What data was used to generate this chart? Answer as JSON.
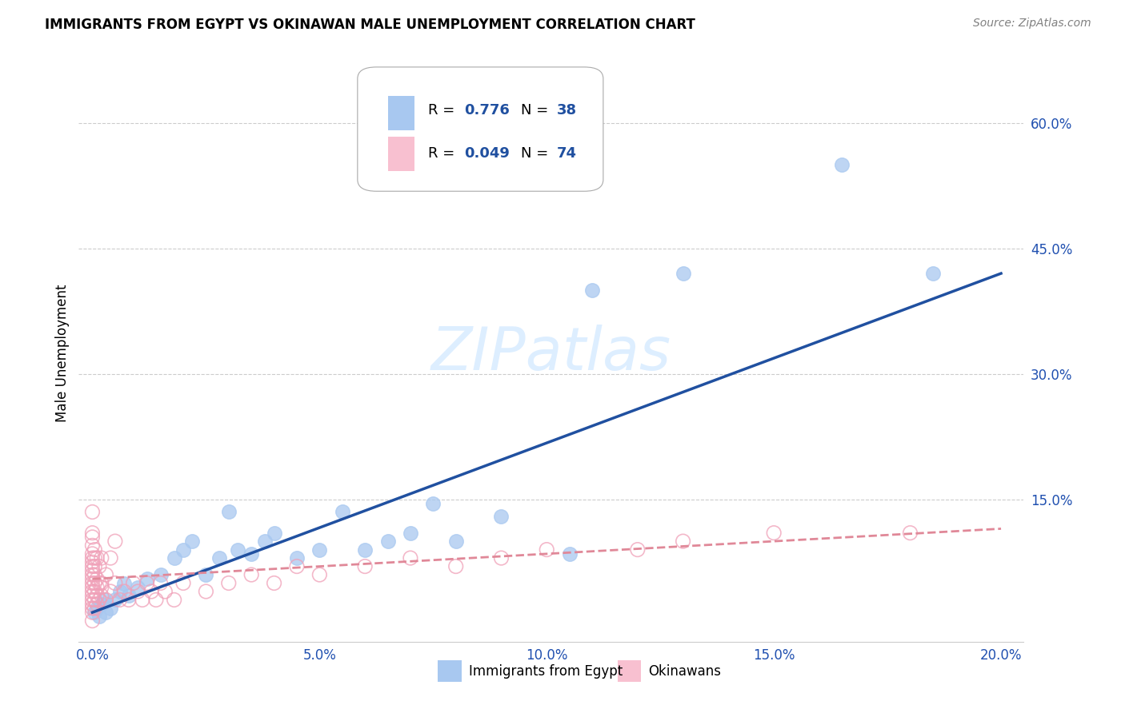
{
  "title": "IMMIGRANTS FROM EGYPT VS OKINAWAN MALE UNEMPLOYMENT CORRELATION CHART",
  "source": "Source: ZipAtlas.com",
  "ylabel": "Male Unemployment",
  "x_tick_labels": [
    "0.0%",
    "5.0%",
    "10.0%",
    "15.0%",
    "20.0%"
  ],
  "x_tick_vals": [
    0.0,
    5.0,
    10.0,
    15.0,
    20.0
  ],
  "y_tick_labels": [
    "15.0%",
    "30.0%",
    "45.0%",
    "60.0%"
  ],
  "y_tick_vals": [
    15.0,
    30.0,
    45.0,
    60.0
  ],
  "xlim": [
    -0.3,
    20.5
  ],
  "ylim": [
    -2.0,
    67.0
  ],
  "blue_face_color": "#A8C8F0",
  "blue_edge_color": "#A8C8F0",
  "pink_face_color": "none",
  "pink_edge_color": "#F0A0B8",
  "blue_line_color": "#2050A0",
  "pink_line_color": "#E08898",
  "legend1_label": "Immigrants from Egypt",
  "legend2_label": "Okinawans",
  "watermark": "ZIPatlas",
  "blue_scatter_x": [
    0.05,
    0.1,
    0.15,
    0.2,
    0.25,
    0.3,
    0.4,
    0.5,
    0.6,
    0.7,
    0.8,
    1.0,
    1.2,
    1.5,
    1.8,
    2.0,
    2.2,
    2.5,
    2.8,
    3.0,
    3.2,
    3.5,
    3.8,
    4.0,
    4.5,
    5.0,
    5.5,
    6.0,
    6.5,
    7.0,
    7.5,
    8.0,
    9.0,
    10.5,
    11.0,
    13.0,
    16.5,
    18.5
  ],
  "blue_scatter_y": [
    1.5,
    2.0,
    1.0,
    2.5,
    3.0,
    1.5,
    2.0,
    3.0,
    4.0,
    5.0,
    3.5,
    4.5,
    5.5,
    6.0,
    8.0,
    9.0,
    10.0,
    6.0,
    8.0,
    13.5,
    9.0,
    8.5,
    10.0,
    11.0,
    8.0,
    9.0,
    13.5,
    9.0,
    10.0,
    11.0,
    14.5,
    10.0,
    13.0,
    8.5,
    40.0,
    42.0,
    55.0,
    42.0
  ],
  "pink_scatter_x": [
    0.0,
    0.0,
    0.0,
    0.0,
    0.0,
    0.0,
    0.0,
    0.0,
    0.0,
    0.0,
    0.0,
    0.0,
    0.0,
    0.0,
    0.0,
    0.0,
    0.0,
    0.0,
    0.0,
    0.0,
    0.05,
    0.05,
    0.05,
    0.05,
    0.05,
    0.05,
    0.05,
    0.05,
    0.1,
    0.1,
    0.1,
    0.1,
    0.1,
    0.15,
    0.15,
    0.15,
    0.2,
    0.2,
    0.2,
    0.2,
    0.3,
    0.3,
    0.4,
    0.4,
    0.5,
    0.5,
    0.6,
    0.7,
    0.8,
    0.9,
    1.0,
    1.1,
    1.2,
    1.3,
    1.4,
    1.5,
    1.6,
    1.8,
    2.0,
    2.5,
    3.0,
    3.5,
    4.0,
    4.5,
    5.0,
    6.0,
    7.0,
    8.0,
    9.0,
    10.0,
    12.0,
    13.0,
    15.0,
    18.0
  ],
  "pink_scatter_y": [
    2.0,
    3.0,
    4.0,
    5.0,
    6.0,
    7.0,
    8.0,
    2.5,
    3.5,
    4.5,
    5.5,
    6.5,
    1.5,
    0.5,
    7.5,
    8.5,
    9.5,
    10.5,
    11.0,
    13.5,
    2.0,
    3.0,
    4.0,
    5.0,
    6.0,
    7.0,
    8.0,
    9.0,
    2.5,
    3.5,
    4.5,
    5.5,
    8.0,
    3.0,
    5.0,
    7.0,
    3.5,
    4.5,
    5.0,
    8.0,
    3.0,
    6.0,
    4.0,
    8.0,
    5.0,
    10.0,
    3.0,
    4.0,
    3.0,
    5.0,
    4.0,
    3.0,
    5.0,
    4.0,
    3.0,
    5.0,
    4.0,
    3.0,
    5.0,
    4.0,
    5.0,
    6.0,
    5.0,
    7.0,
    6.0,
    7.0,
    8.0,
    7.0,
    8.0,
    9.0,
    9.0,
    10.0,
    11.0,
    11.0
  ],
  "blue_line_x0": 0.0,
  "blue_line_y0": 1.5,
  "blue_line_x1": 20.0,
  "blue_line_y1": 42.0,
  "pink_line_x0": 0.0,
  "pink_line_y0": 5.5,
  "pink_line_x1": 20.0,
  "pink_line_y1": 11.5,
  "grid_color": "#CCCCCC",
  "spine_color": "#CCCCCC",
  "tick_color": "#2050B0",
  "title_fontsize": 12,
  "source_fontsize": 10,
  "tick_fontsize": 12,
  "ylabel_fontsize": 12,
  "watermark_fontsize": 54,
  "scatter_size": 160
}
